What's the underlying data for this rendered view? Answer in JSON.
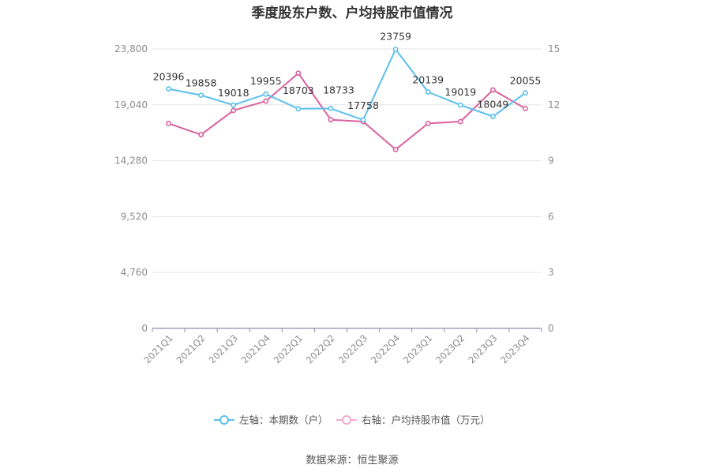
{
  "chart_data": {
    "type": "line",
    "title": "季度股东户数、户均持股市值情况",
    "source": "数据来源：恒生聚源",
    "categories": [
      "2021Q1",
      "2021Q2",
      "2021Q3",
      "2021Q4",
      "2022Q1",
      "2022Q2",
      "2022Q3",
      "2022Q4",
      "2023Q1",
      "2023Q2",
      "2023Q3",
      "2023Q4"
    ],
    "y_left": {
      "ticks": [
        "0",
        "4,760",
        "9,520",
        "14,280",
        "19,040",
        "23,800"
      ],
      "range": [
        0,
        23800
      ]
    },
    "y_right": {
      "ticks": [
        "0",
        "3",
        "6",
        "9",
        "12",
        "15"
      ],
      "range": [
        0,
        15
      ]
    },
    "series": [
      {
        "name": "左轴：本期数（户）",
        "axis": "left",
        "color": "#5bc0eb",
        "values": [
          20396,
          19858,
          19018,
          19955,
          18703,
          18733,
          17758,
          23759,
          20139,
          19019,
          18049,
          20055
        ],
        "labels": [
          "20396",
          "19858",
          "19018",
          "19955",
          "18703",
          "18733",
          "17758",
          "23759",
          "20139",
          "19019",
          "18049",
          "20055"
        ]
      },
      {
        "name": "右轴：户均持股市值（万元）",
        "axis": "right",
        "color": "#d9609f",
        "values": [
          11.0,
          10.4,
          11.7,
          12.2,
          13.7,
          11.2,
          11.1,
          9.6,
          11.0,
          11.1,
          12.8,
          11.8
        ]
      }
    ],
    "grid": true,
    "legend_position": "bottom"
  }
}
